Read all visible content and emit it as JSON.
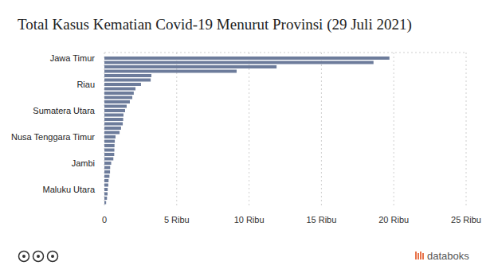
{
  "chart_data": {
    "type": "bar",
    "orientation": "horizontal",
    "title": "Total Kasus Kematian Covid-19 Menurut Provinsi (29 Juli 2021)",
    "categories": [
      "Jawa Timur",
      null,
      null,
      null,
      null,
      null,
      "Riau",
      null,
      null,
      null,
      null,
      null,
      "Sumatera Utara",
      null,
      null,
      null,
      null,
      null,
      "Nusa Tenggara Timur",
      null,
      null,
      null,
      null,
      null,
      "Jambi",
      null,
      null,
      null,
      null,
      null,
      "Maluku Utara",
      null,
      null,
      null
    ],
    "values": [
      19700,
      18600,
      11900,
      9140,
      3250,
      3200,
      2530,
      2150,
      2030,
      1930,
      1760,
      1540,
      1430,
      1320,
      1300,
      1270,
      1150,
      1050,
      770,
      720,
      700,
      690,
      680,
      620,
      470,
      400,
      390,
      350,
      290,
      270,
      230,
      220,
      180,
      120
    ],
    "color": "#6d7c9b",
    "xlim": [
      0,
      25000
    ],
    "xticks": [
      0,
      {
        "value": 5000,
        "label": "5 Ribu"
      },
      {
        "value": 10000,
        "label": "10 Ribu"
      },
      {
        "value": 15000,
        "label": "15 Ribu"
      },
      {
        "value": 20000,
        "label": "20 Ribu"
      },
      {
        "value": 25000,
        "label": "25 Ribu"
      }
    ],
    "grid": true,
    "annotations": [
      "databoks"
    ]
  }
}
